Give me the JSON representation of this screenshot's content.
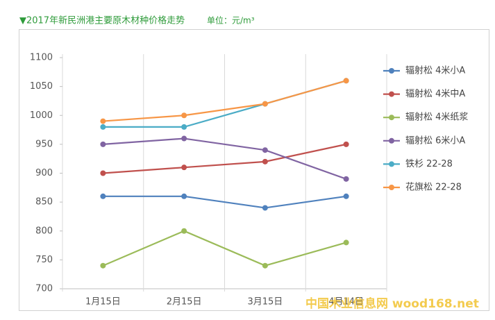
{
  "chart_data": {
    "type": "line",
    "title": "▼2017年新民洲港主要原木材种价格走势",
    "unit": "单位：元/m³",
    "watermark": "中国木业信息网 wood168.net",
    "categories": [
      "1月15日",
      "2月15日",
      "3月15日",
      "4月14日"
    ],
    "series": [
      {
        "name": "辐射松 4米小A",
        "color": "#4f81bd",
        "values": [
          860,
          860,
          840,
          860
        ]
      },
      {
        "name": "辐射松 4米中A",
        "color": "#c0504d",
        "values": [
          900,
          910,
          920,
          950
        ]
      },
      {
        "name": "辐射松 4米纸浆",
        "color": "#9bbb59",
        "values": [
          740,
          800,
          740,
          780
        ]
      },
      {
        "name": "辐射松 6米小A",
        "color": "#8064a2",
        "values": [
          950,
          960,
          940,
          890
        ]
      },
      {
        "name": "铁杉 22-28",
        "color": "#4bacc6",
        "values": [
          980,
          980,
          1020,
          1060
        ]
      },
      {
        "name": "花旗松 22-28",
        "color": "#f79646",
        "values": [
          990,
          1000,
          1020,
          1060
        ]
      }
    ],
    "ylim": [
      700,
      1100
    ],
    "yticks": [
      700,
      750,
      800,
      850,
      900,
      950,
      1000,
      1050,
      1100
    ],
    "legend": "right"
  }
}
